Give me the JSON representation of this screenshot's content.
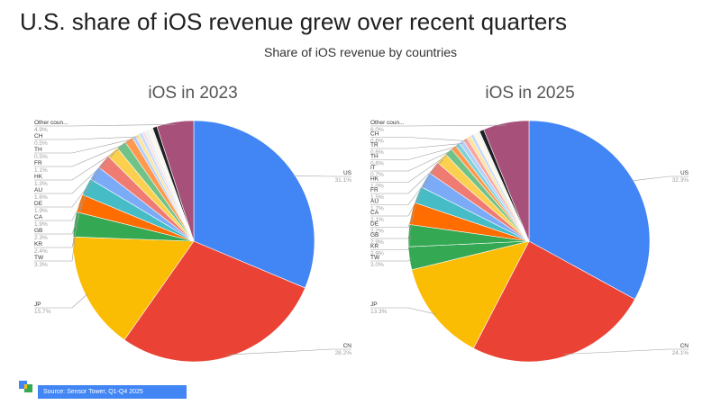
{
  "header": {
    "title": "U.S. share of iOS revenue grew over recent quarters",
    "subtitle": "Share of iOS revenue by countries"
  },
  "footer": {
    "source": "Source: Sensor Tower,  Q1-Q4 2025"
  },
  "colors": {
    "US": "#4285f4",
    "CN": "#ea4335",
    "JP": "#fbbc04",
    "TW": "#34a853",
    "KR": "#ff6d01",
    "GB": "#46bdc6",
    "CA": "#7baaf7",
    "DE": "#f07b72",
    "AU": "#fcd04f",
    "HK": "#71c287",
    "FR": "#ff994d",
    "IT": "#7ed1d7",
    "TH": "#b3cefb",
    "TR": "#f7a7a0",
    "CH": "#fde49b",
    "small": "#e8f0fe",
    "dark": "#202124",
    "other": "#a6507a"
  },
  "chart_data": [
    {
      "type": "pie",
      "title": "iOS in 2023",
      "slices": [
        {
          "label": "US",
          "value": 31.1,
          "display": "31.1%",
          "color": "#4285f4"
        },
        {
          "label": "CN",
          "value": 28.2,
          "display": "28.2%",
          "color": "#ea4335"
        },
        {
          "label": "JP",
          "value": 15.7,
          "display": "15.7%",
          "color": "#fbbc04"
        },
        {
          "label": "TW",
          "value": 3.3,
          "display": "3.3%",
          "color": "#34a853"
        },
        {
          "label": "KR",
          "value": 2.4,
          "display": "2.4%",
          "color": "#ff6d01"
        },
        {
          "label": "GB",
          "value": 2.3,
          "display": "2.3%",
          "color": "#46bdc6"
        },
        {
          "label": "CA",
          "value": 1.9,
          "display": "1.9%",
          "color": "#7baaf7"
        },
        {
          "label": "DE",
          "value": 1.9,
          "display": "1.9%",
          "color": "#f07b72"
        },
        {
          "label": "AU",
          "value": 1.6,
          "display": "1.6%",
          "color": "#fcd04f"
        },
        {
          "label": "HK",
          "value": 1.3,
          "display": "1.3%",
          "color": "#71c287"
        },
        {
          "label": "FR",
          "value": 1.1,
          "display": "1.1%",
          "color": "#ff994d"
        },
        {
          "label": "TH",
          "value": 0.5,
          "display": "0.5%",
          "color": "#b3cefb"
        },
        {
          "label": "CH",
          "value": 0.5,
          "display": "0.5%",
          "color": "#fde49b"
        },
        {
          "label": "",
          "value": 0.45,
          "display": "",
          "color": "#c6dafc"
        },
        {
          "label": "",
          "value": 0.4,
          "display": "",
          "color": "#fbe0de"
        },
        {
          "label": "",
          "value": 0.4,
          "display": "",
          "color": "#e8f0fe"
        },
        {
          "label": "",
          "value": 0.35,
          "display": "",
          "color": "#fef7e0"
        },
        {
          "label": "",
          "value": 0.35,
          "display": "",
          "color": "#f3f3f3"
        },
        {
          "label": "",
          "value": 0.6,
          "display": "",
          "color": "#202124"
        },
        {
          "label": "Other coun...",
          "value": 4.9,
          "display": "4.9%",
          "color": "#a6507a"
        }
      ]
    },
    {
      "type": "pie",
      "title": "iOS in 2025",
      "slices": [
        {
          "label": "US",
          "value": 32.3,
          "display": "32.3%",
          "color": "#4285f4"
        },
        {
          "label": "CN",
          "value": 24.1,
          "display": "24.1%",
          "color": "#ea4335"
        },
        {
          "label": "JP",
          "value": 13.3,
          "display": "13.3%",
          "color": "#fbbc04"
        },
        {
          "label": "TW",
          "value": 3.0,
          "display": "3.0%",
          "color": "#34a853"
        },
        {
          "label": "KR",
          "value": 2.9,
          "display": "2.9%",
          "color": "#34a853"
        },
        {
          "label": "GB",
          "value": 2.9,
          "display": "2.9%",
          "color": "#ff6d01"
        },
        {
          "label": "DE",
          "value": 2.2,
          "display": "2.2%",
          "color": "#46bdc6"
        },
        {
          "label": "CA",
          "value": 2.1,
          "display": "2.1%",
          "color": "#7baaf7"
        },
        {
          "label": "AU",
          "value": 1.7,
          "display": "1.7%",
          "color": "#f07b72"
        },
        {
          "label": "FR",
          "value": 1.5,
          "display": "1.5%",
          "color": "#fcd04f"
        },
        {
          "label": "HK",
          "value": 1.0,
          "display": "1.0%",
          "color": "#71c287"
        },
        {
          "label": "IT",
          "value": 0.7,
          "display": "0.7%",
          "color": "#ff994d"
        },
        {
          "label": "TH",
          "value": 0.6,
          "display": "0.6%",
          "color": "#7ed1d7"
        },
        {
          "label": "TR",
          "value": 0.6,
          "display": "0.6%",
          "color": "#b3cefb"
        },
        {
          "label": "CH",
          "value": 0.6,
          "display": "0.6%",
          "color": "#f7a7a0"
        },
        {
          "label": "",
          "value": 0.5,
          "display": "",
          "color": "#fde49b"
        },
        {
          "label": "",
          "value": 0.45,
          "display": "",
          "color": "#c6dafc"
        },
        {
          "label": "",
          "value": 0.45,
          "display": "",
          "color": "#fef7e0"
        },
        {
          "label": "",
          "value": 0.4,
          "display": "",
          "color": "#f3f3f3"
        },
        {
          "label": "",
          "value": 0.6,
          "display": "",
          "color": "#202124"
        },
        {
          "label": "Other coun...",
          "value": 6.0,
          "display": "6.0%",
          "color": "#a6507a"
        }
      ]
    }
  ]
}
